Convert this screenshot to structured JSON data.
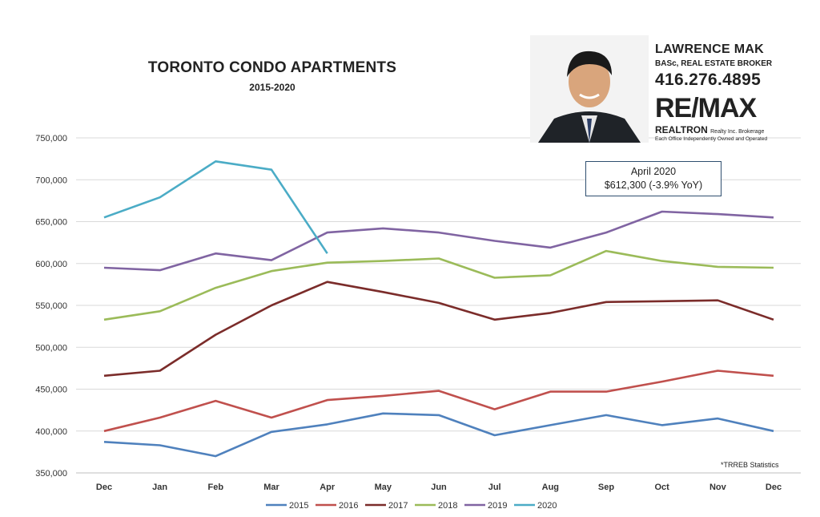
{
  "chart_data": {
    "type": "line",
    "title": "TORONTO CONDO APARTMENTS",
    "subtitle": "2015-2020",
    "categories": [
      "Dec",
      "Jan",
      "Feb",
      "Mar",
      "Apr",
      "May",
      "Jun",
      "Jul",
      "Aug",
      "Sep",
      "Oct",
      "Nov",
      "Dec"
    ],
    "ylim": [
      350000,
      750000
    ],
    "yticks": [
      "350,000",
      "400,000",
      "450,000",
      "500,000",
      "550,000",
      "600,000",
      "650,000",
      "700,000",
      "750,000"
    ],
    "grid": true,
    "legend_position": "bottom",
    "series": [
      {
        "name": "2015",
        "color": "#4f81bd",
        "values": [
          387000,
          383000,
          370000,
          399000,
          408000,
          421000,
          419000,
          395000,
          407000,
          419000,
          407000,
          415000,
          400000
        ]
      },
      {
        "name": "2016",
        "color": "#c0504d",
        "values": [
          400000,
          416000,
          436000,
          416000,
          437000,
          442000,
          448000,
          426000,
          447000,
          447000,
          459000,
          472000,
          466000
        ]
      },
      {
        "name": "2017",
        "color": "#7b2c2a",
        "values": [
          466000,
          472000,
          515000,
          550000,
          578000,
          566000,
          553000,
          533000,
          541000,
          554000,
          555000,
          556000,
          533000
        ]
      },
      {
        "name": "2018",
        "color": "#9bbb59",
        "values": [
          533000,
          543000,
          571000,
          591000,
          601000,
          603000,
          606000,
          583000,
          586000,
          615000,
          603000,
          596000,
          595000
        ]
      },
      {
        "name": "2019",
        "color": "#8064a2",
        "values": [
          595000,
          592000,
          612000,
          604000,
          637000,
          642000,
          637000,
          627000,
          619000,
          637000,
          662000,
          659000,
          655000
        ]
      },
      {
        "name": "2020",
        "color": "#4bacc6",
        "values": [
          655000,
          679000,
          722000,
          712000,
          612000,
          null,
          null,
          null,
          null,
          null,
          null,
          null,
          null
        ]
      }
    ],
    "annotation": {
      "line1": "April 2020",
      "line2": "$612,300  (-3.9% YoY)"
    },
    "source_note": "*TRREB Statistics"
  },
  "agent": {
    "name": "LAWRENCE MAK",
    "credentials": "BASc, REAL ESTATE BROKER",
    "phone": "416.276.4895",
    "brand": "RE/MAX",
    "brokerage": "REALTRON",
    "brokerage_suffix": "Realty Inc. Brokerage",
    "office_note": "Each Office Independently Owned and Operated"
  }
}
